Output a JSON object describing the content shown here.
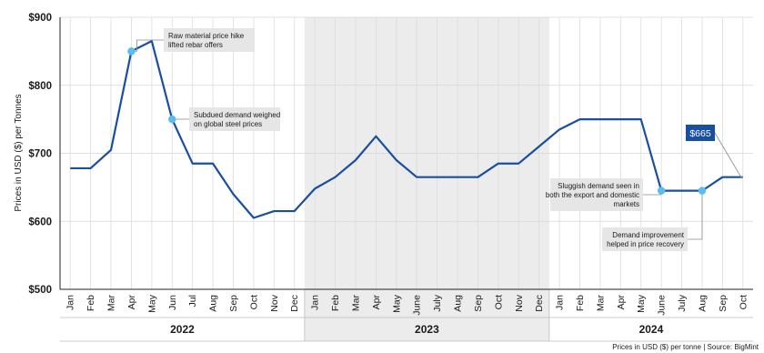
{
  "chart_data": {
    "type": "line",
    "ylabel": "Prices in USD ($) per Tonnes",
    "ylim": [
      500,
      900
    ],
    "yticks": [
      "$500",
      "$600",
      "$700",
      "$800",
      "$900"
    ],
    "grid": "vertical and horizontal",
    "categories": [
      "Jan",
      "Feb",
      "Mar",
      "Apr",
      "May",
      "Jun",
      "Jul",
      "Aug",
      "Sep",
      "Oct",
      "Nov",
      "Dec",
      "Jan",
      "Feb",
      "Mar",
      "Apr",
      "May",
      "June",
      "July",
      "Aug",
      "Sep",
      "Oct",
      "Nov",
      "Dec",
      "Jan",
      "Feb",
      "Mar",
      "Apr",
      "May",
      "June",
      "July",
      "Aug",
      "Sep",
      "Oct"
    ],
    "years": [
      {
        "label": "2022",
        "start": 0,
        "end": 11,
        "shaded": false
      },
      {
        "label": "2023",
        "start": 12,
        "end": 23,
        "shaded": true
      },
      {
        "label": "2024",
        "start": 24,
        "end": 33,
        "shaded": false
      }
    ],
    "series": [
      {
        "color": "#1a4fa0",
        "values": [
          678,
          678,
          705,
          850,
          865,
          750,
          685,
          685,
          640,
          605,
          615,
          615,
          648,
          665,
          690,
          725,
          690,
          665,
          665,
          665,
          665,
          685,
          685,
          710,
          735,
          750,
          750,
          750,
          750,
          645,
          645,
          645,
          665,
          665
        ]
      }
    ],
    "annotations": [
      {
        "index": 3,
        "lines": [
          "Raw material price hike",
          "lifted rebar offers"
        ]
      },
      {
        "index": 5,
        "lines": [
          "Subdued demand weighed",
          "on global steel prices"
        ]
      },
      {
        "index": 29,
        "lines": [
          "Sluggish demand seen in",
          "both the export and domestic",
          "markets"
        ]
      },
      {
        "index": 31,
        "lines": [
          "Demand improvement",
          "helped in price recovery"
        ]
      }
    ],
    "value_label": "$665",
    "marker_color": "#5bbcee",
    "label_bg": "#1a4fa0",
    "source": "Prices in USD ($) per tonne | Source: BigMint"
  }
}
